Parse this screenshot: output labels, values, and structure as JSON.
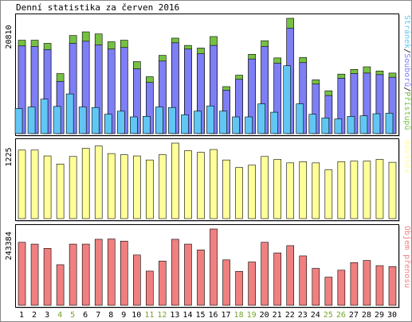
{
  "chart_data": {
    "type": "bar",
    "title": "Denní statistika za červen 2016",
    "categories": [
      "1",
      "2",
      "3",
      "4",
      "5",
      "6",
      "7",
      "8",
      "9",
      "10",
      "11",
      "12",
      "13",
      "14",
      "15",
      "16",
      "17",
      "18",
      "19",
      "20",
      "21",
      "22",
      "23",
      "24",
      "25",
      "26",
      "27",
      "28",
      "29",
      "30"
    ],
    "weekend_days": [
      "4",
      "5",
      "11",
      "12",
      "18",
      "19",
      "25",
      "26"
    ],
    "panels": [
      {
        "id": "hits",
        "ytick_label": "20810",
        "ytick_value": 20810,
        "ylim": [
          0,
          22100
        ],
        "legend": [
          "Stránek",
          "Souborů",
          "Přístupů"
        ],
        "legend_separator": "/",
        "series": [
          {
            "name": "Přístupů",
            "color": "#76c043",
            "values": [
              17900,
              17900,
              17300,
              11500,
              18800,
              19500,
              19100,
              17600,
              17900,
              13800,
              10900,
              15000,
              18300,
              16900,
              16400,
              18600,
              9000,
              11200,
              15200,
              17800,
              14500,
              22100,
              14600,
              10300,
              8200,
              11400,
              12300,
              12800,
              12000,
              11600
            ]
          },
          {
            "name": "Souborů",
            "color": "#7e7ef5",
            "values": [
              16800,
              16700,
              16100,
              10000,
              17300,
              17700,
              17000,
              16200,
              16500,
              12400,
              9800,
              13900,
              17400,
              16200,
              15300,
              16900,
              8300,
              10400,
              14300,
              16700,
              13500,
              20200,
              13600,
              9500,
              7300,
              10600,
              11500,
              11600,
              11300,
              10800
            ]
          },
          {
            "name": "Stránek",
            "color": "#62c6f4",
            "values": [
              4800,
              5100,
              6600,
              5200,
              7600,
              5100,
              5000,
              3700,
              4300,
              3200,
              3300,
              5100,
              5000,
              3600,
              4300,
              5300,
              4300,
              3200,
              3200,
              5700,
              4100,
              13000,
              5700,
              3700,
              3000,
              2800,
              3300,
              3400,
              3800,
              3900
            ]
          }
        ]
      },
      {
        "id": "visits",
        "ytick_label": "1225",
        "ytick_value": 1225,
        "ylim": [
          0,
          1300
        ],
        "legend": [
          "Návštěv"
        ],
        "series": [
          {
            "name": "Návštěv",
            "color": "#ffff99",
            "values": [
              1180,
              1180,
              1080,
              940,
              1070,
              1210,
              1250,
              1120,
              1100,
              1080,
              1010,
              1100,
              1300,
              1170,
              1140,
              1190,
              1010,
              880,
              920,
              1070,
              1020,
              960,
              980,
              960,
              840,
              980,
              990,
              990,
              1020,
              970
            ]
          }
        ]
      },
      {
        "id": "transfer",
        "ytick_label": "243384",
        "ytick_value": 243384,
        "ylim": [
          0,
          252000
        ],
        "legend": [
          "Objem přenosu"
        ],
        "series": [
          {
            "name": "Objem přenosu",
            "color": "#f08080",
            "values": [
              208000,
              202000,
              188000,
              134000,
              202000,
              202000,
              218000,
              219000,
              212000,
              166000,
              113000,
              146000,
              218000,
              202000,
              183000,
              252000,
              150000,
              112000,
              143000,
              208000,
              173000,
              197000,
              163000,
              122000,
              93000,
              116000,
              141000,
              148000,
              131000,
              128000
            ]
          }
        ]
      }
    ]
  }
}
